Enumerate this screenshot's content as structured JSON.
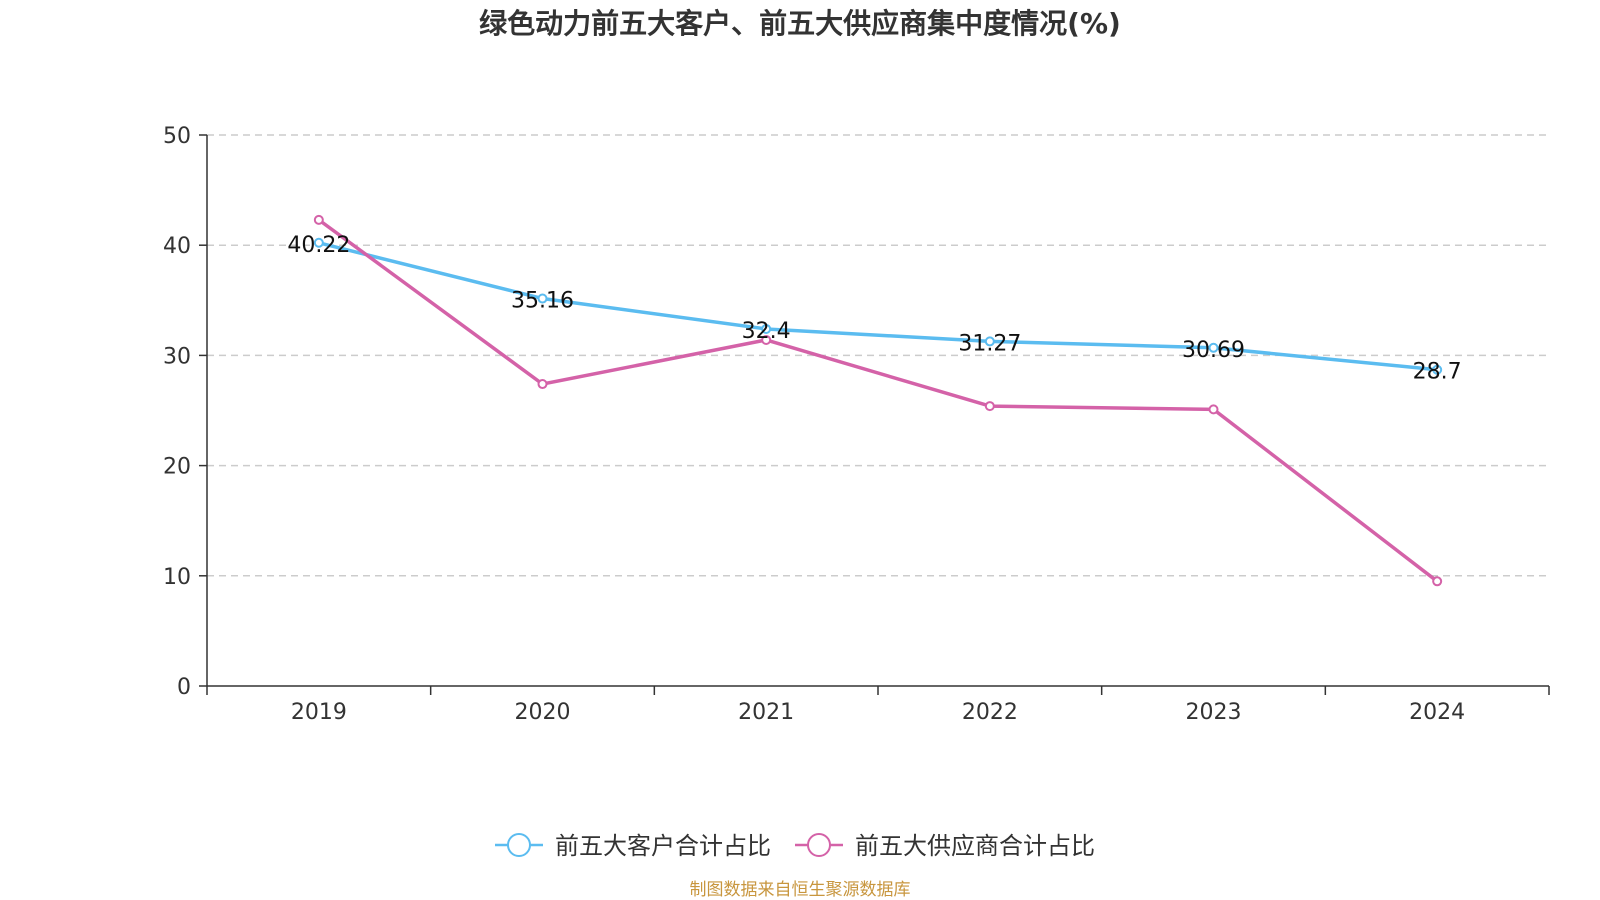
{
  "source_note": "制图数据来自恒生聚源数据库",
  "chart_data": {
    "type": "line",
    "title": "绿色动力前五大客户、前五大供应商集中度情况(%)",
    "categories": [
      "2019",
      "2020",
      "2021",
      "2022",
      "2023",
      "2024"
    ],
    "ylim": [
      0,
      50
    ],
    "yticks": [
      0,
      10,
      20,
      30,
      40,
      50
    ],
    "grid": true,
    "legend_position": "bottom",
    "series": [
      {
        "name": "前五大客户合计占比",
        "color": "#5bbcf0",
        "values": [
          40.22,
          35.16,
          32.4,
          31.27,
          30.69,
          28.7
        ],
        "show_labels": true
      },
      {
        "name": "前五大供应商合计占比",
        "color": "#d462a8",
        "values": [
          42.3,
          27.4,
          31.4,
          25.4,
          25.1,
          9.5
        ],
        "show_labels": false
      }
    ]
  }
}
